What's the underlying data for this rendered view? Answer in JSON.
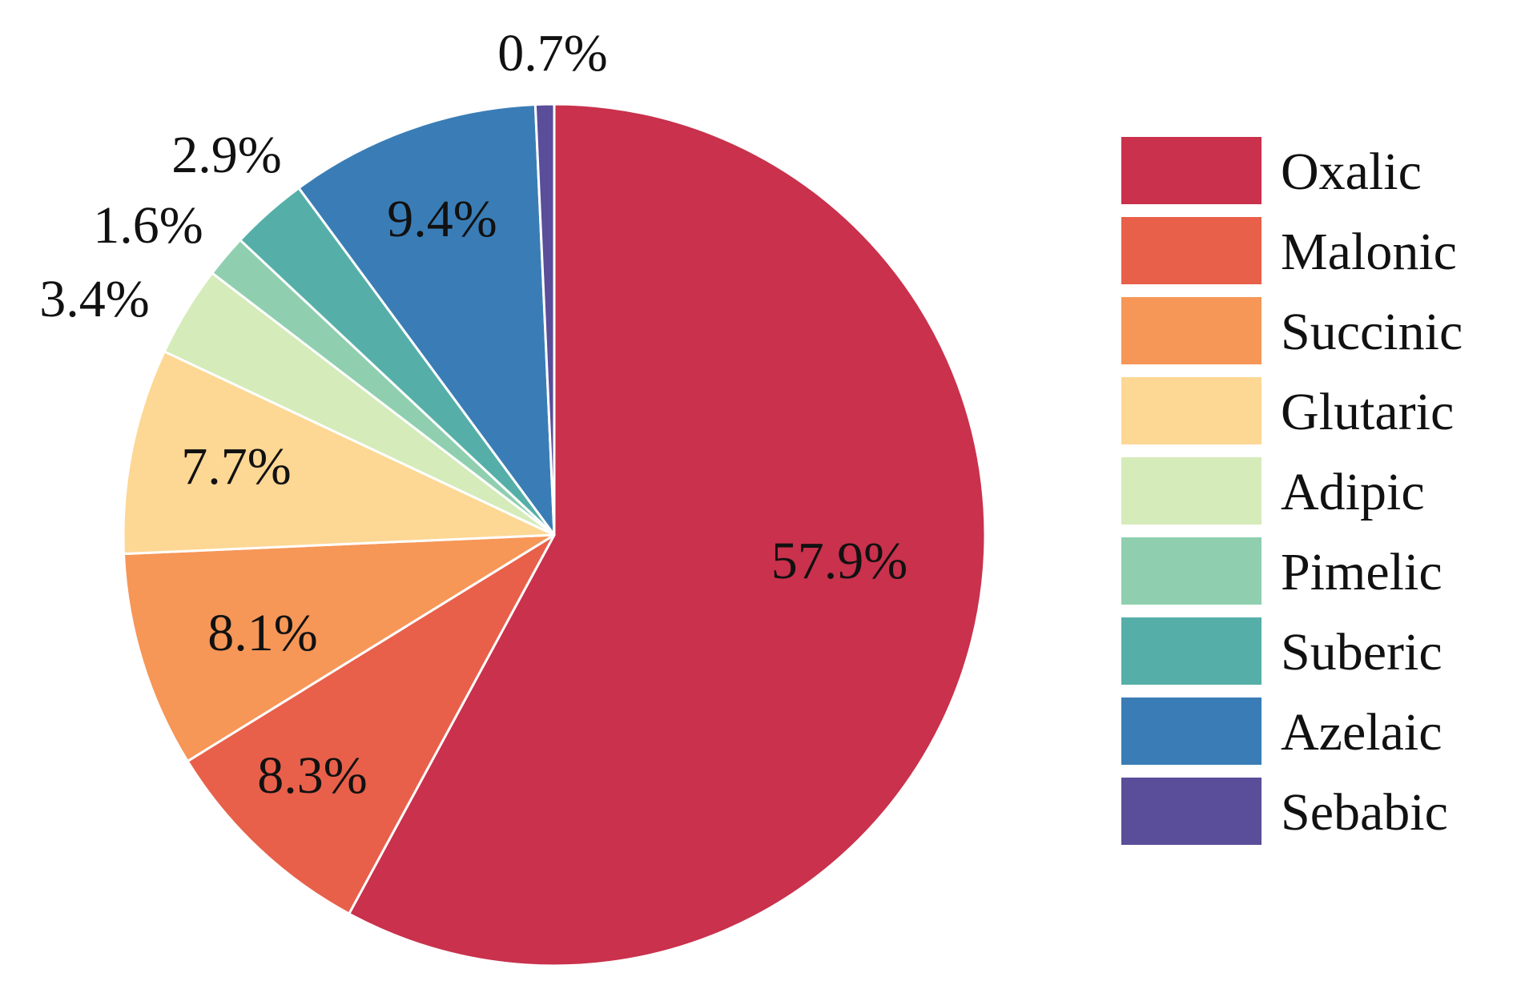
{
  "chart_data": {
    "type": "pie",
    "title": "",
    "slices": [
      {
        "label": "Oxalic",
        "value": 57.9,
        "display": "57.9%",
        "color": "#C9314C"
      },
      {
        "label": "Malonic",
        "value": 8.3,
        "display": "8.3%",
        "color": "#E8604A"
      },
      {
        "label": "Succinic",
        "value": 8.1,
        "display": "8.1%",
        "color": "#F69657"
      },
      {
        "label": "Glutaric",
        "value": 7.7,
        "display": "7.7%",
        "color": "#FDD794"
      },
      {
        "label": "Adipic",
        "value": 3.4,
        "display": "3.4%",
        "color": "#D5EBBA"
      },
      {
        "label": "Pimelic",
        "value": 1.6,
        "display": "1.6%",
        "color": "#8FCFAF"
      },
      {
        "label": "Suberic",
        "value": 2.9,
        "display": "2.9%",
        "color": "#55AFA8"
      },
      {
        "label": "Azelaic",
        "value": 9.4,
        "display": "9.4%",
        "color": "#3A7DB6"
      },
      {
        "label": "Sebabic",
        "value": 0.7,
        "display": "0.7%",
        "color": "#5A4D99"
      }
    ],
    "start_angle": "12 o'clock",
    "direction": "clockwise",
    "legend_position": "right"
  }
}
